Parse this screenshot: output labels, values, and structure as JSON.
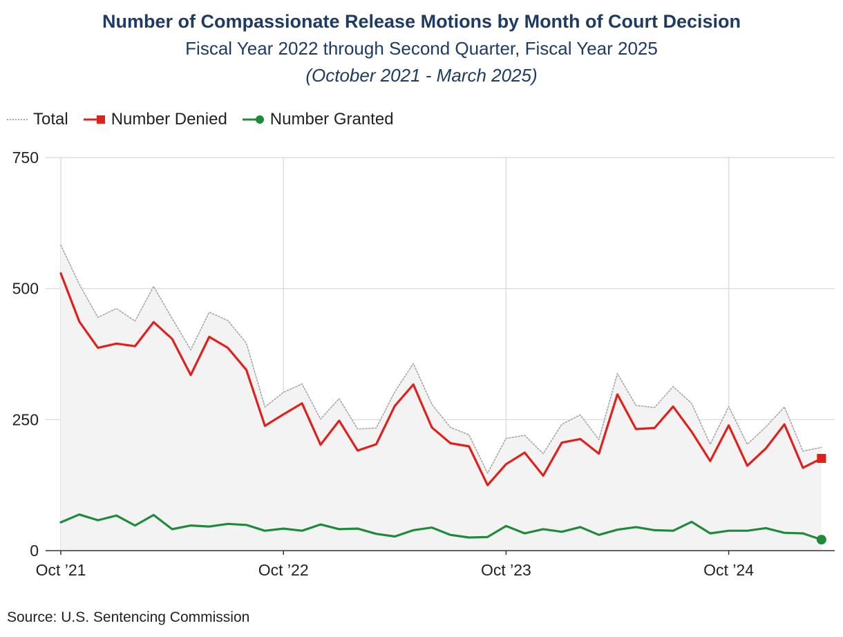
{
  "chart_data": {
    "type": "line",
    "title": "Number of Compassionate Release Motions by Month of Court Decision",
    "subtitle": "Fiscal Year 2022 through Second Quarter, Fiscal Year 2025",
    "date_range": "(October 2021 - March 2025)",
    "source": "Source: U.S. Sentencing Commission",
    "x_tick_labels": [
      "Oct ’21",
      "Oct ’22",
      "Oct ’23",
      "Oct ’24"
    ],
    "y_ticks": [
      0,
      250,
      500,
      750
    ],
    "ylim": [
      0,
      750
    ],
    "x": [
      "2021-10",
      "2021-11",
      "2021-12",
      "2022-01",
      "2022-02",
      "2022-03",
      "2022-04",
      "2022-05",
      "2022-06",
      "2022-07",
      "2022-08",
      "2022-09",
      "2022-10",
      "2022-11",
      "2022-12",
      "2023-01",
      "2023-02",
      "2023-03",
      "2023-04",
      "2023-05",
      "2023-06",
      "2023-07",
      "2023-08",
      "2023-09",
      "2023-10",
      "2023-11",
      "2023-12",
      "2024-01",
      "2024-02",
      "2024-03",
      "2024-04",
      "2024-05",
      "2024-06",
      "2024-07",
      "2024-08",
      "2024-09",
      "2024-10",
      "2024-11",
      "2024-12",
      "2025-01",
      "2025-02",
      "2025-03"
    ],
    "grid": true,
    "legend_position": "top-left",
    "series": [
      {
        "name": "Total",
        "color": "#a6a6a6",
        "style": "dotted",
        "values": [
          583,
          508,
          445,
          462,
          438,
          504,
          443,
          383,
          455,
          439,
          396,
          274,
          302,
          318,
          251,
          290,
          232,
          234,
          303,
          357,
          279,
          235,
          221,
          148,
          214,
          220,
          185,
          241,
          259,
          212,
          338,
          277,
          273,
          313,
          281,
          203,
          275,
          203,
          236,
          274,
          190,
          197
        ]
      },
      {
        "name": "Number Denied",
        "color": "#e0201b",
        "style": "solid",
        "marker": "square",
        "values": [
          529,
          437,
          387,
          395,
          390,
          436,
          404,
          335,
          408,
          387,
          345,
          238,
          260,
          281,
          202,
          248,
          191,
          203,
          276,
          317,
          235,
          205,
          199,
          125,
          165,
          187,
          143,
          206,
          213,
          185,
          298,
          232,
          234,
          275,
          227,
          171,
          239,
          162,
          195,
          241,
          158,
          176
        ]
      },
      {
        "name": "Number Granted",
        "color": "#1e8a3a",
        "style": "solid",
        "marker": "circle",
        "values": [
          54,
          69,
          58,
          67,
          48,
          68,
          41,
          48,
          46,
          51,
          49,
          38,
          42,
          38,
          50,
          41,
          42,
          32,
          27,
          39,
          44,
          30,
          25,
          26,
          47,
          33,
          41,
          36,
          45,
          30,
          40,
          45,
          39,
          38,
          55,
          33,
          38,
          38,
          43,
          34,
          33,
          21
        ]
      }
    ]
  }
}
